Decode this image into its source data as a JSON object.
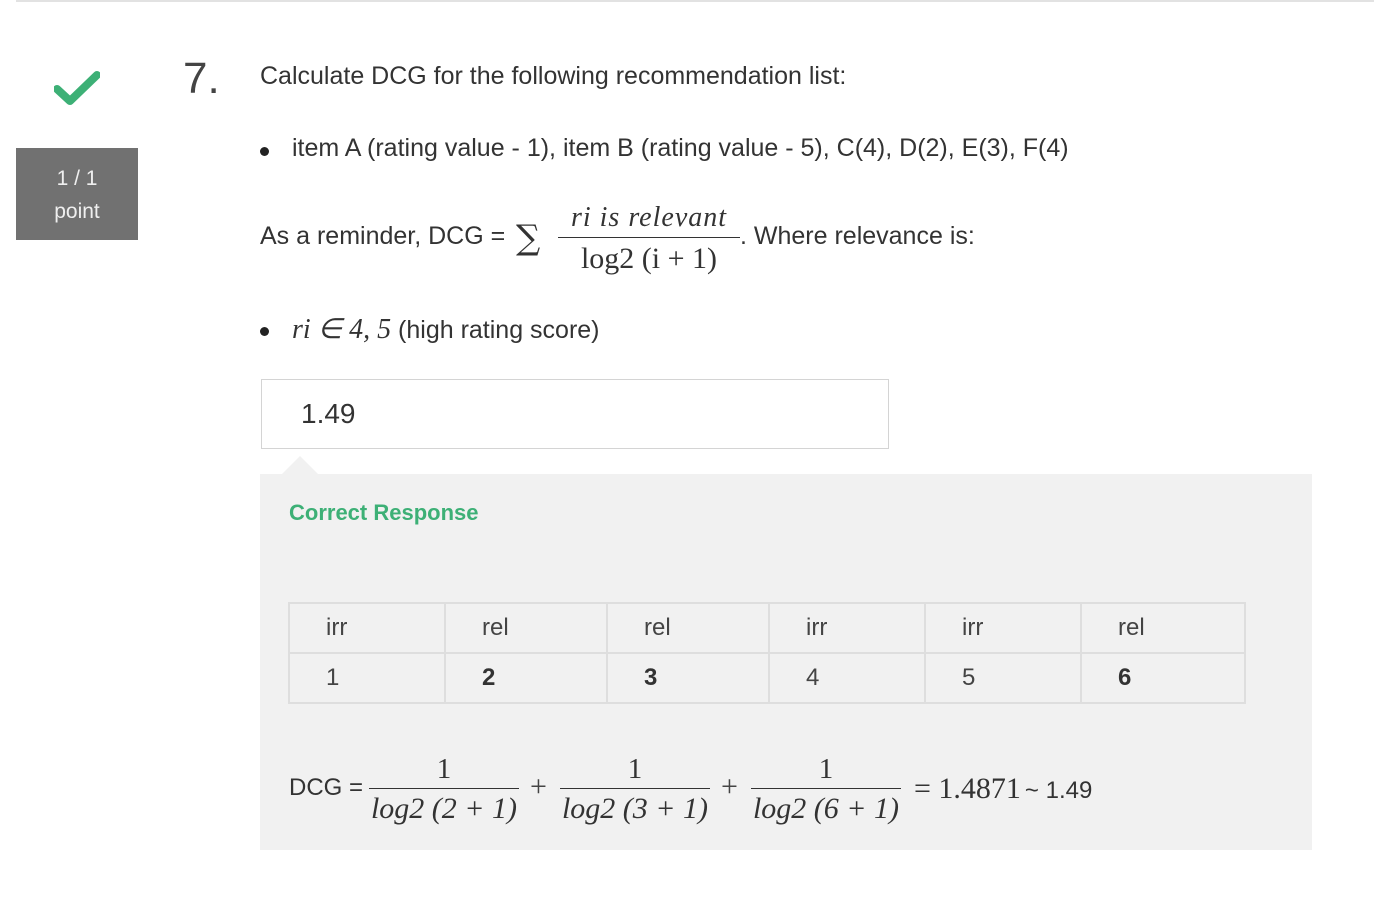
{
  "question": {
    "number": "7.",
    "text": "Calculate DCG for the following recommendation list:",
    "list_item": "item A (rating value - 1), item B (rating value - 5), C(4), D(2), E(3), F(4)",
    "reminder_lead": "As a reminder, DCG =",
    "reminder_sigma": "∑",
    "formula_numerator": "ri is relevant",
    "formula_denominator": "log2 (i + 1)",
    "reminder_trail": ". Where relevance is:",
    "relevance_math": "ri ∈ 4, 5",
    "relevance_text": "(high rating score)"
  },
  "score": {
    "value": "1 / 1",
    "unit": "point"
  },
  "answer": {
    "value": "1.49"
  },
  "feedback": {
    "title": "Correct Response",
    "table": {
      "labels": [
        "irr",
        "rel",
        "rel",
        "irr",
        "irr",
        "rel"
      ],
      "positions": [
        "1",
        "2",
        "3",
        "4",
        "5",
        "6"
      ]
    },
    "equation": {
      "label": "DCG =",
      "numerator": "1",
      "terms": [
        "log2 (2 + 1)",
        "log2 (3 + 1)",
        "log2 (6 + 1)"
      ],
      "plus": "+",
      "result": "= 1.4871",
      "approx": "~ 1.49"
    }
  },
  "colors": {
    "check": "#3db076",
    "score_bg": "#717171",
    "feedback_bg": "#f1f1f1",
    "title": "#3db076"
  },
  "icons": {
    "status": "checkmark-icon"
  }
}
